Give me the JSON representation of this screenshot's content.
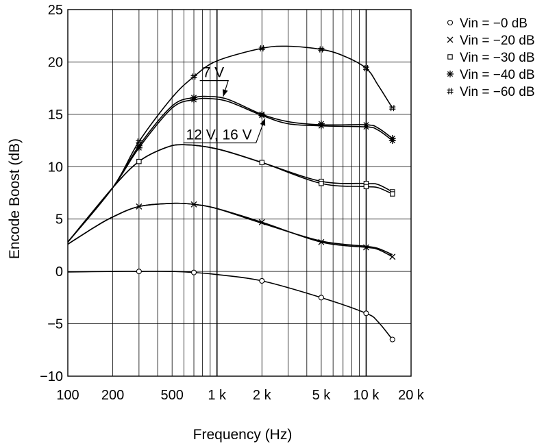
{
  "chart_data": {
    "type": "line",
    "title": "",
    "xlabel": "Frequency (Hz)",
    "ylabel": "Encode Boost (dB)",
    "x_scale": "log",
    "xlim": [
      100,
      20000
    ],
    "ylim": [
      -10,
      25
    ],
    "grid": true,
    "legend_position": "top-right",
    "x_ticks": [
      {
        "value": 100,
        "label": "100"
      },
      {
        "value": 200,
        "label": "200"
      },
      {
        "value": 500,
        "label": "500"
      },
      {
        "value": 1000,
        "label": "1 k"
      },
      {
        "value": 2000,
        "label": "2 k"
      },
      {
        "value": 5000,
        "label": "5 k"
      },
      {
        "value": 10000,
        "label": "10 k"
      },
      {
        "value": 20000,
        "label": "20 k"
      }
    ],
    "y_ticks": [
      {
        "value": 25,
        "label": "25"
      },
      {
        "value": 20,
        "label": "20"
      },
      {
        "value": 15,
        "label": "15"
      },
      {
        "value": 10,
        "label": "10"
      },
      {
        "value": 5,
        "label": "5"
      },
      {
        "value": 0,
        "label": "0"
      },
      {
        "value": -5,
        "label": "−5"
      },
      {
        "value": -10,
        "label": "−10"
      }
    ],
    "series": [
      {
        "name": "Vin = −0 dB",
        "marker": "circle",
        "markers": [
          [
            300,
            0
          ],
          [
            700,
            -0.1
          ],
          [
            2000,
            -0.9
          ],
          [
            5000,
            -2.5
          ],
          [
            10000,
            -4.0
          ],
          [
            15000,
            -6.5
          ]
        ],
        "curves": [
          [
            [
              100,
              -0.05
            ],
            [
              200,
              0.0
            ],
            [
              300,
              0.0
            ],
            [
              500,
              0.0
            ],
            [
              700,
              -0.1
            ],
            [
              1000,
              -0.3
            ],
            [
              2000,
              -0.9
            ],
            [
              5000,
              -2.5
            ],
            [
              10000,
              -4.0
            ],
            [
              12000,
              -4.8
            ],
            [
              15000,
              -6.5
            ]
          ]
        ]
      },
      {
        "name": "Vin = −20 dB",
        "marker": "x",
        "markers": [
          [
            300,
            6.2
          ],
          [
            700,
            6.4
          ],
          [
            2000,
            4.7
          ],
          [
            5000,
            2.8
          ],
          [
            10000,
            2.3
          ],
          [
            15000,
            1.4
          ]
        ],
        "curves": [
          [
            [
              100,
              2.6
            ],
            [
              150,
              4.2
            ],
            [
              200,
              5.2
            ],
            [
              300,
              6.2
            ],
            [
              500,
              6.5
            ],
            [
              700,
              6.4
            ],
            [
              1000,
              6.0
            ],
            [
              2000,
              4.7
            ],
            [
              5000,
              2.8
            ],
            [
              10000,
              2.3
            ],
            [
              12000,
              2.1
            ],
            [
              15000,
              1.4
            ]
          ],
          [
            [
              100,
              2.6
            ],
            [
              150,
              4.2
            ],
            [
              200,
              5.2
            ],
            [
              300,
              6.2
            ],
            [
              500,
              6.5
            ],
            [
              700,
              6.4
            ],
            [
              1000,
              6.0
            ],
            [
              2000,
              4.6
            ],
            [
              5000,
              2.9
            ],
            [
              10000,
              2.4
            ],
            [
              12000,
              2.2
            ],
            [
              15000,
              1.6
            ]
          ]
        ]
      },
      {
        "name": "Vin = −30 dB",
        "marker": "square",
        "markers": [
          [
            300,
            10.5
          ],
          [
            2000,
            10.4
          ],
          [
            5000,
            8.6
          ],
          [
            5000,
            8.4
          ],
          [
            10000,
            8.4
          ],
          [
            10000,
            8.1
          ],
          [
            15000,
            7.6
          ],
          [
            15000,
            7.4
          ]
        ],
        "curves": [
          [
            [
              100,
              2.8
            ],
            [
              200,
              8.0
            ],
            [
              300,
              10.5
            ],
            [
              450,
              11.8
            ],
            [
              600,
              12.1
            ],
            [
              1000,
              11.7
            ],
            [
              2000,
              10.4
            ],
            [
              5000,
              8.6
            ],
            [
              10000,
              8.4
            ],
            [
              12000,
              8.3
            ],
            [
              15000,
              7.6
            ]
          ],
          [
            [
              100,
              2.8
            ],
            [
              200,
              8.0
            ],
            [
              300,
              10.5
            ],
            [
              450,
              11.8
            ],
            [
              600,
              12.1
            ],
            [
              1000,
              11.7
            ],
            [
              2000,
              10.4
            ],
            [
              5000,
              8.4
            ],
            [
              10000,
              8.1
            ],
            [
              12000,
              8.0
            ],
            [
              15000,
              7.4
            ]
          ]
        ]
      },
      {
        "name": "Vin = −40 dB",
        "marker": "asterisk",
        "markers": [
          [
            300,
            12.0
          ],
          [
            300,
            11.8
          ],
          [
            700,
            16.6
          ],
          [
            700,
            16.4
          ],
          [
            2000,
            14.9
          ],
          [
            2000,
            15.0
          ],
          [
            5000,
            13.9
          ],
          [
            5000,
            14.1
          ],
          [
            10000,
            14.0
          ],
          [
            10000,
            13.8
          ],
          [
            15000,
            12.7
          ],
          [
            15000,
            12.5
          ]
        ],
        "curves": [
          [
            [
              100,
              2.8
            ],
            [
              200,
              8.0
            ],
            [
              300,
              12.0
            ],
            [
              500,
              15.8
            ],
            [
              700,
              16.6
            ],
            [
              900,
              16.7
            ],
            [
              1200,
              16.4
            ],
            [
              2000,
              15.0
            ],
            [
              3000,
              14.3
            ],
            [
              5000,
              14.0
            ],
            [
              10000,
              14.0
            ],
            [
              12000,
              13.7
            ],
            [
              15000,
              12.7
            ]
          ],
          [
            [
              100,
              2.8
            ],
            [
              200,
              8.0
            ],
            [
              300,
              11.8
            ],
            [
              500,
              15.6
            ],
            [
              700,
              16.4
            ],
            [
              900,
              16.5
            ],
            [
              1200,
              16.2
            ],
            [
              2000,
              14.9
            ],
            [
              3000,
              14.1
            ],
            [
              5000,
              13.9
            ],
            [
              10000,
              13.8
            ],
            [
              12000,
              13.5
            ],
            [
              15000,
              12.5
            ]
          ]
        ]
      },
      {
        "name": "Vin = −60 dB",
        "marker": "hash",
        "markers": [
          [
            300,
            12.4
          ],
          [
            700,
            18.6
          ],
          [
            2000,
            21.3
          ],
          [
            5000,
            21.2
          ],
          [
            10000,
            19.4
          ],
          [
            15000,
            15.6
          ]
        ],
        "curves": [
          [
            [
              100,
              2.8
            ],
            [
              200,
              8.0
            ],
            [
              300,
              12.4
            ],
            [
              500,
              16.6
            ],
            [
              700,
              18.6
            ],
            [
              1000,
              20.1
            ],
            [
              2000,
              21.3
            ],
            [
              3000,
              21.5
            ],
            [
              5000,
              21.2
            ],
            [
              7000,
              20.6
            ],
            [
              10000,
              19.4
            ],
            [
              12000,
              17.8
            ],
            [
              15000,
              15.6
            ]
          ]
        ]
      }
    ],
    "annotations": [
      {
        "text": "7 V",
        "label_x": 800,
        "label_y": 18.55,
        "arrow_to": [
          1100,
          16.7
        ]
      },
      {
        "text": "12 V, 16 V",
        "label_x": 620,
        "label_y": 12.6,
        "arrow_to": [
          2100,
          14.6
        ]
      }
    ]
  }
}
